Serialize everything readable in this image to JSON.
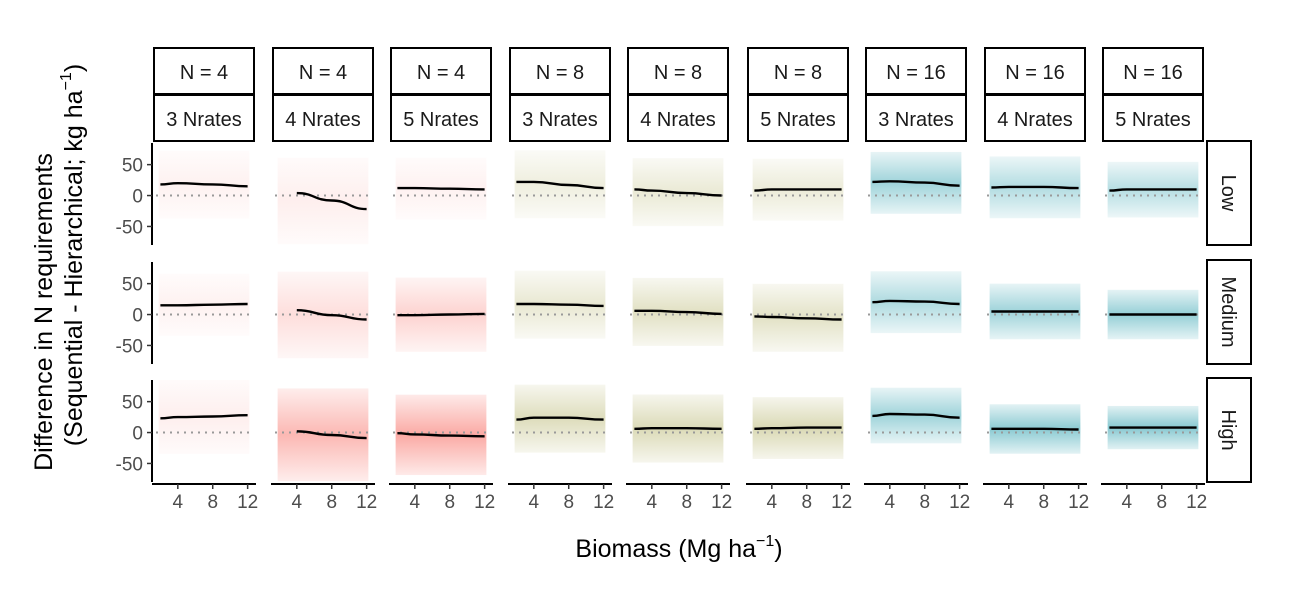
{
  "chart_data": {
    "type": "line",
    "xlabel": "Biomass (Mg ha",
    "xlabel_sup": "−1",
    "xlabel_end": ")",
    "ylabel_line1": "Difference in N requirements",
    "ylabel_line2": "(Sequential - Hierarchical; kg ha",
    "ylabel_sup": "−1",
    "ylabel_end": ")",
    "xlim": [
      1.5,
      12.5
    ],
    "ylim": [
      -80,
      85
    ],
    "x_ticks": [
      4,
      8,
      12
    ],
    "x_tick_labels": [
      "4",
      "8",
      "12"
    ],
    "y_ticks": [
      50,
      0,
      -50
    ],
    "y_tick_labels": [
      "50",
      "0",
      "-50"
    ],
    "reference_line_y": 0,
    "columns": [
      {
        "n_label": "N = 4",
        "rates_label": "3 Nrates",
        "color": "#F8766D",
        "fit_x_start": 2.0
      },
      {
        "n_label": "N = 4",
        "rates_label": "4 Nrates",
        "color": "#F8766D",
        "fit_x_start": 4.0
      },
      {
        "n_label": "N = 4",
        "rates_label": "5 Nrates",
        "color": "#F8766D",
        "fit_x_start": 2.0
      },
      {
        "n_label": "N = 8",
        "rates_label": "3 Nrates",
        "color": "#B5B36A",
        "fit_x_start": 2.0
      },
      {
        "n_label": "N = 8",
        "rates_label": "4 Nrates",
        "color": "#B5B36A",
        "fit_x_start": 2.0
      },
      {
        "n_label": "N = 8",
        "rates_label": "5 Nrates",
        "color": "#B5B36A",
        "fit_x_start": 2.0
      },
      {
        "n_label": "N = 16",
        "rates_label": "3 Nrates",
        "color": "#3FA8B5",
        "fit_x_start": 2.0
      },
      {
        "n_label": "N = 16",
        "rates_label": "4 Nrates",
        "color": "#3FA8B5",
        "fit_x_start": 2.0
      },
      {
        "n_label": "N = 16",
        "rates_label": "5 Nrates",
        "color": "#3FA8B5",
        "fit_x_start": 2.0
      }
    ],
    "rows": [
      {
        "label": "Low"
      },
      {
        "label": "Medium"
      },
      {
        "label": "High"
      }
    ],
    "fits": [
      [
        {
          "x": [
            2,
            4,
            8,
            12
          ],
          "y": [
            18,
            20,
            18,
            15
          ]
        },
        {
          "x": [
            4,
            8,
            12
          ],
          "y": [
            4,
            -8,
            -22
          ]
        },
        {
          "x": [
            2,
            4,
            8,
            12
          ],
          "y": [
            12,
            12,
            11,
            10
          ]
        },
        {
          "x": [
            2,
            4,
            8,
            12
          ],
          "y": [
            22,
            22,
            17,
            12
          ]
        },
        {
          "x": [
            2,
            4,
            8,
            12
          ],
          "y": [
            10,
            8,
            4,
            0
          ]
        },
        {
          "x": [
            2,
            4,
            8,
            12
          ],
          "y": [
            8,
            10,
            10,
            10
          ]
        },
        {
          "x": [
            2,
            4,
            8,
            12
          ],
          "y": [
            22,
            23,
            21,
            16
          ]
        },
        {
          "x": [
            2,
            4,
            8,
            12
          ],
          "y": [
            13,
            14,
            14,
            12
          ]
        },
        {
          "x": [
            2,
            4,
            8,
            12
          ],
          "y": [
            8,
            10,
            10,
            10
          ]
        }
      ],
      [
        {
          "x": [
            2,
            4,
            8,
            12
          ],
          "y": [
            15,
            15,
            16,
            17
          ]
        },
        {
          "x": [
            4,
            8,
            12
          ],
          "y": [
            7,
            -1,
            -8
          ]
        },
        {
          "x": [
            2,
            4,
            8,
            12
          ],
          "y": [
            -1,
            -1,
            0,
            1
          ]
        },
        {
          "x": [
            2,
            4,
            8,
            12
          ],
          "y": [
            17,
            17,
            16,
            14
          ]
        },
        {
          "x": [
            2,
            4,
            8,
            12
          ],
          "y": [
            6,
            6,
            4,
            1
          ]
        },
        {
          "x": [
            2,
            4,
            8,
            12
          ],
          "y": [
            -3,
            -4,
            -6,
            -8
          ]
        },
        {
          "x": [
            2,
            4,
            8,
            12
          ],
          "y": [
            20,
            22,
            21,
            17
          ]
        },
        {
          "x": [
            2,
            4,
            8,
            12
          ],
          "y": [
            5,
            5,
            5,
            5
          ]
        },
        {
          "x": [
            2,
            4,
            8,
            12
          ],
          "y": [
            0,
            0,
            0,
            0
          ]
        }
      ],
      [
        {
          "x": [
            2,
            4,
            8,
            12
          ],
          "y": [
            23,
            25,
            26,
            28
          ]
        },
        {
          "x": [
            4,
            8,
            12
          ],
          "y": [
            2,
            -4,
            -9
          ]
        },
        {
          "x": [
            2,
            4,
            8,
            12
          ],
          "y": [
            -1,
            -3,
            -5,
            -6
          ]
        },
        {
          "x": [
            2,
            4,
            8,
            12
          ],
          "y": [
            21,
            24,
            24,
            21
          ]
        },
        {
          "x": [
            2,
            4,
            8,
            12
          ],
          "y": [
            6,
            7,
            7,
            6
          ]
        },
        {
          "x": [
            2,
            4,
            8,
            12
          ],
          "y": [
            6,
            7,
            8,
            8
          ]
        },
        {
          "x": [
            2,
            4,
            8,
            12
          ],
          "y": [
            27,
            30,
            29,
            24
          ]
        },
        {
          "x": [
            2,
            4,
            8,
            12
          ],
          "y": [
            6,
            6,
            6,
            5
          ]
        },
        {
          "x": [
            2,
            4,
            8,
            12
          ],
          "y": [
            8,
            8,
            8,
            8
          ]
        }
      ]
    ],
    "band_halfwidth": [
      [
        55,
        70,
        50,
        55,
        55,
        50,
        50,
        50,
        45
      ],
      [
        50,
        70,
        60,
        55,
        55,
        55,
        50,
        45,
        40
      ],
      [
        60,
        75,
        65,
        55,
        55,
        50,
        45,
        40,
        35
      ]
    ],
    "band_opacity": [
      [
        0.1,
        0.12,
        0.1,
        0.22,
        0.28,
        0.26,
        0.5,
        0.4,
        0.38
      ],
      [
        0.1,
        0.24,
        0.32,
        0.3,
        0.4,
        0.38,
        0.42,
        0.5,
        0.55
      ],
      [
        0.12,
        0.52,
        0.62,
        0.45,
        0.48,
        0.5,
        0.5,
        0.6,
        0.62
      ]
    ]
  }
}
